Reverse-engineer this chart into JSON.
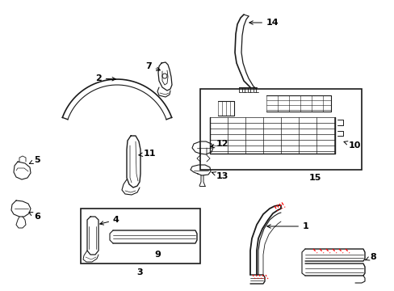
{
  "bg_color": "#ffffff",
  "line_color": "#1a1a1a",
  "red_color": "#ff0000",
  "lfs": 8,
  "fig_w": 4.89,
  "fig_h": 3.6,
  "dpi": 100
}
